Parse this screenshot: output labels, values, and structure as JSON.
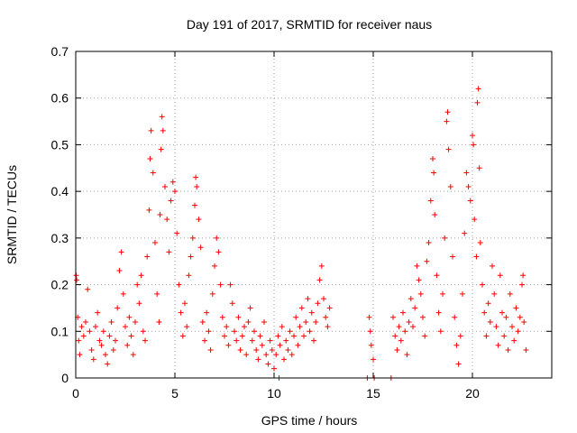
{
  "chart_data": {
    "type": "scatter",
    "title": "Day 191 of 2017, SRMTID for receiver naus",
    "xlabel": "GPS time / hours",
    "ylabel": "SRMTID / TECUs",
    "xlim": [
      0,
      24
    ],
    "ylim": [
      0,
      0.7
    ],
    "xticks": [
      0,
      5,
      10,
      15,
      20
    ],
    "xtick_labels": [
      "0",
      "5",
      "10",
      "15",
      "20"
    ],
    "yticks": [
      0,
      0.1,
      0.2,
      0.3,
      0.4,
      0.5,
      0.6,
      0.7
    ],
    "ytick_labels": [
      "0",
      "0.1",
      "0.2",
      "0.3",
      "0.4",
      "0.5",
      "0.6",
      "0.7"
    ],
    "grid": true,
    "marker": "+",
    "series": [
      {
        "name": "SRMTID",
        "color": "#ff0000",
        "points": [
          [
            0.02,
            0.22
          ],
          [
            0.05,
            0.21
          ],
          [
            0.1,
            0.13
          ],
          [
            0.15,
            0.08
          ],
          [
            0.2,
            0.05
          ],
          [
            0.3,
            0.11
          ],
          [
            0.4,
            0.09
          ],
          [
            0.5,
            0.12
          ],
          [
            0.6,
            0.19
          ],
          [
            0.7,
            0.1
          ],
          [
            0.8,
            0.06
          ],
          [
            0.9,
            0.04
          ],
          [
            1.0,
            0.11
          ],
          [
            1.1,
            0.14
          ],
          [
            1.2,
            0.08
          ],
          [
            1.3,
            0.07
          ],
          [
            1.4,
            0.1
          ],
          [
            1.5,
            0.05
          ],
          [
            1.6,
            0.03
          ],
          [
            1.7,
            0.09
          ],
          [
            1.8,
            0.12
          ],
          [
            1.9,
            0.06
          ],
          [
            2.0,
            0.08
          ],
          [
            2.1,
            0.15
          ],
          [
            2.2,
            0.23
          ],
          [
            2.3,
            0.27
          ],
          [
            2.4,
            0.18
          ],
          [
            2.5,
            0.11
          ],
          [
            2.6,
            0.07
          ],
          [
            2.7,
            0.13
          ],
          [
            2.8,
            0.09
          ],
          [
            2.9,
            0.05
          ],
          [
            3.0,
            0.12
          ],
          [
            3.1,
            0.2
          ],
          [
            3.2,
            0.16
          ],
          [
            3.3,
            0.22
          ],
          [
            3.4,
            0.1
          ],
          [
            3.5,
            0.08
          ],
          [
            3.6,
            0.26
          ],
          [
            3.7,
            0.36
          ],
          [
            3.75,
            0.47
          ],
          [
            3.8,
            0.53
          ],
          [
            3.9,
            0.44
          ],
          [
            4.0,
            0.29
          ],
          [
            4.1,
            0.18
          ],
          [
            4.2,
            0.12
          ],
          [
            4.25,
            0.35
          ],
          [
            4.3,
            0.49
          ],
          [
            4.35,
            0.56
          ],
          [
            4.4,
            0.53
          ],
          [
            4.5,
            0.41
          ],
          [
            4.6,
            0.34
          ],
          [
            4.7,
            0.27
          ],
          [
            4.8,
            0.38
          ],
          [
            4.9,
            0.42
          ],
          [
            5.0,
            0.4
          ],
          [
            5.1,
            0.31
          ],
          [
            5.2,
            0.2
          ],
          [
            5.3,
            0.14
          ],
          [
            5.4,
            0.09
          ],
          [
            5.5,
            0.16
          ],
          [
            5.6,
            0.11
          ],
          [
            5.7,
            0.22
          ],
          [
            5.8,
            0.26
          ],
          [
            5.9,
            0.3
          ],
          [
            6.0,
            0.37
          ],
          [
            6.05,
            0.43
          ],
          [
            6.1,
            0.41
          ],
          [
            6.2,
            0.34
          ],
          [
            6.3,
            0.28
          ],
          [
            6.4,
            0.12
          ],
          [
            6.5,
            0.08
          ],
          [
            6.6,
            0.14
          ],
          [
            6.7,
            0.1
          ],
          [
            6.8,
            0.06
          ],
          [
            6.9,
            0.18
          ],
          [
            7.0,
            0.24
          ],
          [
            7.1,
            0.3
          ],
          [
            7.2,
            0.27
          ],
          [
            7.3,
            0.2
          ],
          [
            7.4,
            0.13
          ],
          [
            7.5,
            0.09
          ],
          [
            7.6,
            0.11
          ],
          [
            7.7,
            0.07
          ],
          [
            7.8,
            0.2
          ],
          [
            7.9,
            0.16
          ],
          [
            8.0,
            0.1
          ],
          [
            8.1,
            0.08
          ],
          [
            8.2,
            0.13
          ],
          [
            8.3,
            0.06
          ],
          [
            8.4,
            0.09
          ],
          [
            8.5,
            0.11
          ],
          [
            8.6,
            0.05
          ],
          [
            8.7,
            0.12
          ],
          [
            8.8,
            0.15
          ],
          [
            8.9,
            0.08
          ],
          [
            9.0,
            0.1
          ],
          [
            9.1,
            0.06
          ],
          [
            9.2,
            0.04
          ],
          [
            9.3,
            0.09
          ],
          [
            9.4,
            0.07
          ],
          [
            9.5,
            0.12
          ],
          [
            9.6,
            0.05
          ],
          [
            9.7,
            0.03
          ],
          [
            9.8,
            0.08
          ],
          [
            9.9,
            0.06
          ],
          [
            10.0,
            0.02
          ],
          [
            10.1,
            0.05
          ],
          [
            10.2,
            0.09
          ],
          [
            10.25,
            0.0
          ],
          [
            10.3,
            0.07
          ],
          [
            10.4,
            0.11
          ],
          [
            10.5,
            0.04
          ],
          [
            10.6,
            0.08
          ],
          [
            10.7,
            0.06
          ],
          [
            10.8,
            0.1
          ],
          [
            10.9,
            0.05
          ],
          [
            11.0,
            0.09
          ],
          [
            11.1,
            0.13
          ],
          [
            11.2,
            0.07
          ],
          [
            11.3,
            0.11
          ],
          [
            11.4,
            0.15
          ],
          [
            11.5,
            0.09
          ],
          [
            11.6,
            0.12
          ],
          [
            11.7,
            0.17
          ],
          [
            11.8,
            0.1
          ],
          [
            11.9,
            0.14
          ],
          [
            12.0,
            0.08
          ],
          [
            12.1,
            0.12
          ],
          [
            12.2,
            0.16
          ],
          [
            12.3,
            0.21
          ],
          [
            12.4,
            0.24
          ],
          [
            12.5,
            0.17
          ],
          [
            12.6,
            0.13
          ],
          [
            12.7,
            0.11
          ],
          [
            12.8,
            0.15
          ],
          [
            14.7,
            0.0
          ],
          [
            14.8,
            0.13
          ],
          [
            14.85,
            0.1
          ],
          [
            14.9,
            0.07
          ],
          [
            15.0,
            0.04
          ],
          [
            15.05,
            0.0
          ],
          [
            15.9,
            0.0
          ],
          [
            16.0,
            0.13
          ],
          [
            16.1,
            0.09
          ],
          [
            16.2,
            0.06
          ],
          [
            16.3,
            0.11
          ],
          [
            16.4,
            0.08
          ],
          [
            16.5,
            0.14
          ],
          [
            16.6,
            0.1
          ],
          [
            16.7,
            0.05
          ],
          [
            16.8,
            0.12
          ],
          [
            16.9,
            0.17
          ],
          [
            17.0,
            0.11
          ],
          [
            17.1,
            0.15
          ],
          [
            17.2,
            0.24
          ],
          [
            17.3,
            0.21
          ],
          [
            17.4,
            0.18
          ],
          [
            17.5,
            0.13
          ],
          [
            17.6,
            0.09
          ],
          [
            17.7,
            0.25
          ],
          [
            17.8,
            0.29
          ],
          [
            17.9,
            0.38
          ],
          [
            18.0,
            0.47
          ],
          [
            18.05,
            0.44
          ],
          [
            18.1,
            0.35
          ],
          [
            18.2,
            0.22
          ],
          [
            18.3,
            0.14
          ],
          [
            18.4,
            0.1
          ],
          [
            18.5,
            0.18
          ],
          [
            18.6,
            0.3
          ],
          [
            18.7,
            0.55
          ],
          [
            18.75,
            0.57
          ],
          [
            18.8,
            0.49
          ],
          [
            18.9,
            0.41
          ],
          [
            19.0,
            0.26
          ],
          [
            19.1,
            0.13
          ],
          [
            19.2,
            0.07
          ],
          [
            19.3,
            0.03
          ],
          [
            19.4,
            0.09
          ],
          [
            19.5,
            0.18
          ],
          [
            19.6,
            0.31
          ],
          [
            19.7,
            0.44
          ],
          [
            19.8,
            0.41
          ],
          [
            19.9,
            0.38
          ],
          [
            20.0,
            0.52
          ],
          [
            20.05,
            0.5
          ],
          [
            20.1,
            0.34
          ],
          [
            20.2,
            0.26
          ],
          [
            20.25,
            0.59
          ],
          [
            20.3,
            0.62
          ],
          [
            20.35,
            0.45
          ],
          [
            20.4,
            0.29
          ],
          [
            20.5,
            0.2
          ],
          [
            20.6,
            0.14
          ],
          [
            20.7,
            0.09
          ],
          [
            20.8,
            0.16
          ],
          [
            20.9,
            0.12
          ],
          [
            21.0,
            0.24
          ],
          [
            21.1,
            0.18
          ],
          [
            21.2,
            0.11
          ],
          [
            21.3,
            0.07
          ],
          [
            21.4,
            0.22
          ],
          [
            21.5,
            0.14
          ],
          [
            21.6,
            0.09
          ],
          [
            21.7,
            0.13
          ],
          [
            21.8,
            0.06
          ],
          [
            21.9,
            0.18
          ],
          [
            22.0,
            0.11
          ],
          [
            22.1,
            0.08
          ],
          [
            22.2,
            0.15
          ],
          [
            22.3,
            0.1
          ],
          [
            22.4,
            0.13
          ],
          [
            22.5,
            0.2
          ],
          [
            22.55,
            0.22
          ],
          [
            22.6,
            0.12
          ],
          [
            22.7,
            0.06
          ]
        ]
      }
    ]
  }
}
